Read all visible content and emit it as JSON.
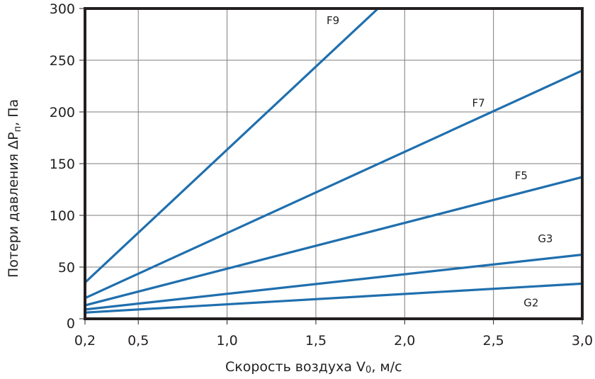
{
  "chart_data": {
    "type": "line",
    "title": "",
    "xlabel": "Скорость воздуха V₀, м/с",
    "xlabel_main": "Скорость воздуха V",
    "xlabel_sub": "0",
    "xlabel_tail": ", м/с",
    "ylabel": "Потери давления ΔPп, Па",
    "ylabel_main": "Потери давления ΔP",
    "ylabel_sub": "п",
    "ylabel_tail": ", Па",
    "xlim": [
      0.2,
      3.0
    ],
    "ylim": [
      0,
      300
    ],
    "grid": true,
    "legend": "inline labels",
    "x_ticks": [
      {
        "value": 0.2,
        "label": "0,2"
      },
      {
        "value": 0.5,
        "label": "0,5"
      },
      {
        "value": 1.0,
        "label": "1,0"
      },
      {
        "value": 1.5,
        "label": "1,5"
      },
      {
        "value": 2.0,
        "label": "2,0"
      },
      {
        "value": 2.5,
        "label": "2,5"
      },
      {
        "value": 3.0,
        "label": "3,0"
      }
    ],
    "y_ticks": [
      {
        "value": 0,
        "label": "0"
      },
      {
        "value": 50,
        "label": "50"
      },
      {
        "value": 100,
        "label": "100"
      },
      {
        "value": 150,
        "label": "150"
      },
      {
        "value": 200,
        "label": "200"
      },
      {
        "value": 250,
        "label": "250"
      },
      {
        "value": 300,
        "label": "300"
      }
    ],
    "series": [
      {
        "name": "F9",
        "x": [
          0.2,
          1.85
        ],
        "y": [
          35,
          300
        ],
        "label_pos": [
          1.56,
          285
        ]
      },
      {
        "name": "F7",
        "x": [
          0.2,
          3.0
        ],
        "y": [
          20,
          240
        ],
        "label_pos": [
          2.38,
          205
        ]
      },
      {
        "name": "F5",
        "x": [
          0.2,
          3.0
        ],
        "y": [
          13,
          137
        ],
        "label_pos": [
          2.62,
          135
        ]
      },
      {
        "name": "G3",
        "x": [
          0.2,
          3.0
        ],
        "y": [
          9,
          62
        ],
        "label_pos": [
          2.75,
          74
        ]
      },
      {
        "name": "G2",
        "x": [
          0.2,
          3.0
        ],
        "y": [
          6,
          34
        ],
        "label_pos": [
          2.67,
          12
        ]
      }
    ],
    "colors": {
      "line": "#1f6fae",
      "axis": "#231f20",
      "grid": "#7d7d7d"
    }
  }
}
